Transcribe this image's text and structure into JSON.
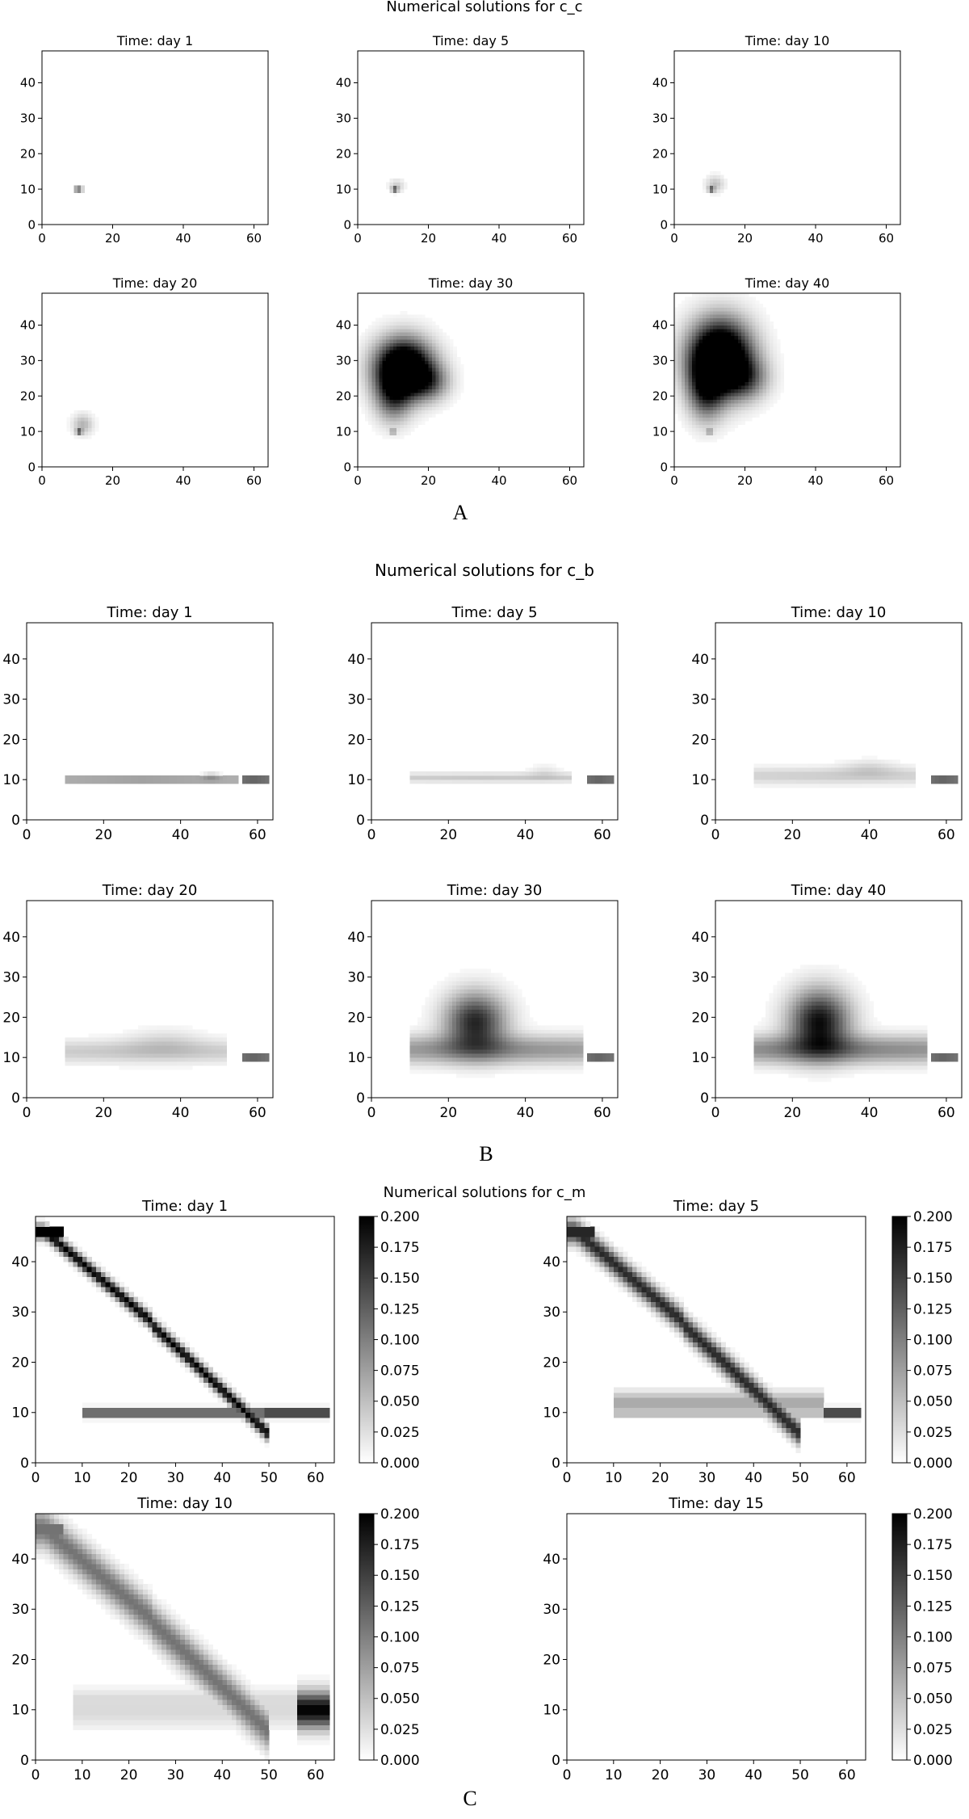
{
  "chart_data": [
    {
      "type": "heatmap",
      "group": "A",
      "title": "Numerical solutions for c_c",
      "caption": "A",
      "colormap": "Greys",
      "panels": [
        {
          "title": "Time: day 1",
          "xticks": [
            0,
            20,
            40,
            60
          ],
          "yticks": [
            0,
            10,
            20,
            30,
            40
          ],
          "xlim": [
            0,
            64
          ],
          "ylim": [
            0,
            49
          ],
          "blobs": [
            {
              "x": 10,
              "y": 10,
              "sx": 0.6,
              "sy": 0.4,
              "v": 1.0
            },
            {
              "x": 11,
              "y": 10,
              "sx": 0.5,
              "sy": 0.4,
              "v": 0.5
            }
          ]
        },
        {
          "title": "Time: day 5",
          "xticks": [
            0,
            20,
            40,
            60
          ],
          "yticks": [
            0,
            10,
            20,
            30,
            40
          ],
          "xlim": [
            0,
            64
          ],
          "ylim": [
            0,
            49
          ],
          "blobs": [
            {
              "x": 10.5,
              "y": 10,
              "sx": 0.6,
              "sy": 0.4,
              "v": 0.95
            },
            {
              "x": 11,
              "y": 11,
              "sx": 1.5,
              "sy": 1.3,
              "v": 0.2
            }
          ]
        },
        {
          "title": "Time: day 10",
          "xticks": [
            0,
            20,
            40,
            60
          ],
          "yticks": [
            0,
            10,
            20,
            30,
            40
          ],
          "xlim": [
            0,
            64
          ],
          "ylim": [
            0,
            49
          ],
          "blobs": [
            {
              "x": 10.5,
              "y": 10,
              "sx": 0.6,
              "sy": 0.4,
              "v": 0.95
            },
            {
              "x": 11.5,
              "y": 11.5,
              "sx": 1.8,
              "sy": 1.6,
              "v": 0.25
            }
          ]
        },
        {
          "title": "Time: day 20",
          "xticks": [
            0,
            20,
            40,
            60
          ],
          "yticks": [
            0,
            10,
            20,
            30,
            40
          ],
          "xlim": [
            0,
            64
          ],
          "ylim": [
            0,
            49
          ],
          "blobs": [
            {
              "x": 10.5,
              "y": 10,
              "sx": 0.6,
              "sy": 0.4,
              "v": 0.95
            },
            {
              "x": 11.5,
              "y": 12,
              "sx": 2.0,
              "sy": 2.0,
              "v": 0.3
            }
          ]
        },
        {
          "title": "Time: day 30",
          "xticks": [
            0,
            20,
            40,
            60
          ],
          "yticks": [
            0,
            10,
            20,
            30,
            40
          ],
          "xlim": [
            0,
            64
          ],
          "ylim": [
            0,
            49
          ],
          "blobs": [
            {
              "x": 13,
              "y": 28,
              "sx": 5.5,
              "sy": 5.5,
              "v": 1.6
            },
            {
              "x": 10,
              "y": 20,
              "sx": 3.5,
              "sy": 5,
              "v": 0.6
            },
            {
              "x": 20,
              "y": 24,
              "sx": 4,
              "sy": 3.5,
              "v": 0.5
            },
            {
              "x": 10,
              "y": 10,
              "sx": 0.6,
              "sy": 0.4,
              "v": 0.6
            }
          ]
        },
        {
          "title": "Time: day 40",
          "xticks": [
            0,
            20,
            40,
            60
          ],
          "yticks": [
            0,
            10,
            20,
            30,
            40
          ],
          "xlim": [
            0,
            64
          ],
          "ylim": [
            0,
            49
          ],
          "blobs": [
            {
              "x": 13,
              "y": 31,
              "sx": 6,
              "sy": 7,
              "v": 1.7
            },
            {
              "x": 9,
              "y": 22,
              "sx": 3.5,
              "sy": 6,
              "v": 0.7
            },
            {
              "x": 20,
              "y": 25,
              "sx": 4.5,
              "sy": 4,
              "v": 0.5
            },
            {
              "x": 10,
              "y": 10,
              "sx": 0.6,
              "sy": 0.4,
              "v": 0.6
            }
          ]
        }
      ]
    },
    {
      "type": "heatmap",
      "group": "B",
      "title": "Numerical solutions for c_b",
      "caption": "B",
      "colormap": "Greys",
      "panels": [
        {
          "title": "Time: day 1",
          "xticks": [
            0,
            20,
            40,
            60
          ],
          "yticks": [
            0,
            10,
            20,
            30,
            40
          ],
          "xlim": [
            0,
            64
          ],
          "ylim": [
            0,
            49
          ],
          "blobs": [
            {
              "x": 30,
              "y": 10,
              "sx": 14,
              "sy": 0.5,
              "v": 0.6,
              "band": [
                10,
                55
              ]
            },
            {
              "x": 48,
              "y": 11,
              "sx": 1.5,
              "sy": 0.8,
              "v": 0.15
            },
            {
              "x": 59,
              "y": 10,
              "sx": 3,
              "sy": 0.5,
              "v": 1.0,
              "band": [
                56,
                63
              ]
            }
          ]
        },
        {
          "title": "Time: day 5",
          "xticks": [
            0,
            20,
            40,
            60
          ],
          "yticks": [
            0,
            10,
            20,
            30,
            40
          ],
          "xlim": [
            0,
            64
          ],
          "ylim": [
            0,
            49
          ],
          "blobs": [
            {
              "x": 30,
              "y": 10.5,
              "sx": 14,
              "sy": 0.8,
              "v": 0.22,
              "band": [
                10,
                52
              ]
            },
            {
              "x": 45,
              "y": 12,
              "sx": 3,
              "sy": 1.2,
              "v": 0.1
            },
            {
              "x": 59,
              "y": 10,
              "sx": 3,
              "sy": 0.5,
              "v": 1.0,
              "band": [
                56,
                63
              ]
            }
          ]
        },
        {
          "title": "Time: day 10",
          "xticks": [
            0,
            20,
            40,
            60
          ],
          "yticks": [
            0,
            10,
            20,
            30,
            40
          ],
          "xlim": [
            0,
            64
          ],
          "ylim": [
            0,
            49
          ],
          "blobs": [
            {
              "x": 30,
              "y": 11,
              "sx": 14,
              "sy": 1.5,
              "v": 0.2,
              "band": [
                10,
                52
              ]
            },
            {
              "x": 40,
              "y": 13,
              "sx": 5,
              "sy": 1.5,
              "v": 0.12
            },
            {
              "x": 59,
              "y": 10,
              "sx": 3,
              "sy": 0.5,
              "v": 1.0,
              "band": [
                56,
                63
              ]
            }
          ]
        },
        {
          "title": "Time: day 20",
          "xticks": [
            0,
            20,
            40,
            60
          ],
          "yticks": [
            0,
            10,
            20,
            30,
            40
          ],
          "xlim": [
            0,
            64
          ],
          "ylim": [
            0,
            49
          ],
          "blobs": [
            {
              "x": 28,
              "y": 11.5,
              "sx": 14,
              "sy": 2,
              "v": 0.22,
              "band": [
                10,
                52
              ]
            },
            {
              "x": 36,
              "y": 14,
              "sx": 7,
              "sy": 2.5,
              "v": 0.12
            },
            {
              "x": 59,
              "y": 10,
              "sx": 3,
              "sy": 0.5,
              "v": 1.0,
              "band": [
                56,
                63
              ]
            }
          ]
        },
        {
          "title": "Time: day 30",
          "xticks": [
            0,
            20,
            40,
            60
          ],
          "yticks": [
            0,
            10,
            20,
            30,
            40
          ],
          "xlim": [
            0,
            64
          ],
          "ylim": [
            0,
            49
          ],
          "blobs": [
            {
              "x": 27,
              "y": 19,
              "sx": 5.5,
              "sy": 5,
              "v": 0.85
            },
            {
              "x": 30,
              "y": 12,
              "sx": 12,
              "sy": 2.5,
              "v": 0.45,
              "band": [
                10,
                55
              ]
            },
            {
              "x": 59,
              "y": 10,
              "sx": 3,
              "sy": 0.5,
              "v": 1.0,
              "band": [
                56,
                63
              ]
            }
          ]
        },
        {
          "title": "Time: day 40",
          "xticks": [
            0,
            20,
            40,
            60
          ],
          "yticks": [
            0,
            10,
            20,
            30,
            40
          ],
          "xlim": [
            0,
            64
          ],
          "ylim": [
            0,
            49
          ],
          "blobs": [
            {
              "x": 27,
              "y": 19,
              "sx": 5.5,
              "sy": 5.5,
              "v": 0.95
            },
            {
              "x": 30,
              "y": 12,
              "sx": 12,
              "sy": 2.5,
              "v": 0.5,
              "band": [
                10,
                55
              ]
            },
            {
              "x": 59,
              "y": 10,
              "sx": 3,
              "sy": 0.5,
              "v": 1.0,
              "band": [
                56,
                63
              ]
            }
          ]
        }
      ]
    },
    {
      "type": "heatmap",
      "group": "C",
      "title": "Numerical solutions for c_m",
      "caption": "C",
      "colormap": "Greys",
      "vmin": 0.0,
      "vmax": 0.2,
      "colorbar_ticks": [
        "0.000",
        "0.025",
        "0.050",
        "0.075",
        "0.100",
        "0.125",
        "0.150",
        "0.175",
        "0.200"
      ],
      "panels": [
        {
          "title": "Time: day 1",
          "xticks": [
            0,
            10,
            20,
            30,
            40,
            50,
            60
          ],
          "yticks": [
            0,
            10,
            20,
            30,
            40
          ],
          "xlim": [
            0,
            64
          ],
          "ylim": [
            0,
            49
          ],
          "curve": {
            "width": 1.0,
            "v": 1.0
          },
          "hline": {
            "x0": 10,
            "x1": 63,
            "v": 0.8,
            "dark_from": 49
          }
        },
        {
          "title": "Time: day 5",
          "xticks": [
            0,
            10,
            20,
            30,
            40,
            50,
            60
          ],
          "yticks": [
            0,
            10,
            20,
            30,
            40
          ],
          "xlim": [
            0,
            64
          ],
          "ylim": [
            0,
            49
          ],
          "curve": {
            "width": 1.6,
            "v": 0.85
          },
          "hline": {
            "x0": 10,
            "x1": 63,
            "v": 0.35,
            "dark_from": 55
          }
        },
        {
          "title": "Time: day 10",
          "xticks": [
            0,
            10,
            20,
            30,
            40,
            50,
            60
          ],
          "yticks": [
            0,
            10,
            20,
            30,
            40
          ],
          "xlim": [
            0,
            64
          ],
          "ylim": [
            0,
            49
          ],
          "curve": {
            "width": 2.6,
            "v": 0.55
          },
          "hline": {
            "x0": 8,
            "x1": 63,
            "v": 0.15,
            "dark_from": 56
          }
        },
        {
          "title": "Time: day 15",
          "xticks": [
            0,
            10,
            20,
            30,
            40,
            50,
            60
          ],
          "yticks": [
            0,
            10,
            20,
            30,
            40
          ],
          "xlim": [
            0,
            64
          ],
          "ylim": [
            0,
            49
          ],
          "curve": null,
          "hline": null
        }
      ]
    }
  ]
}
